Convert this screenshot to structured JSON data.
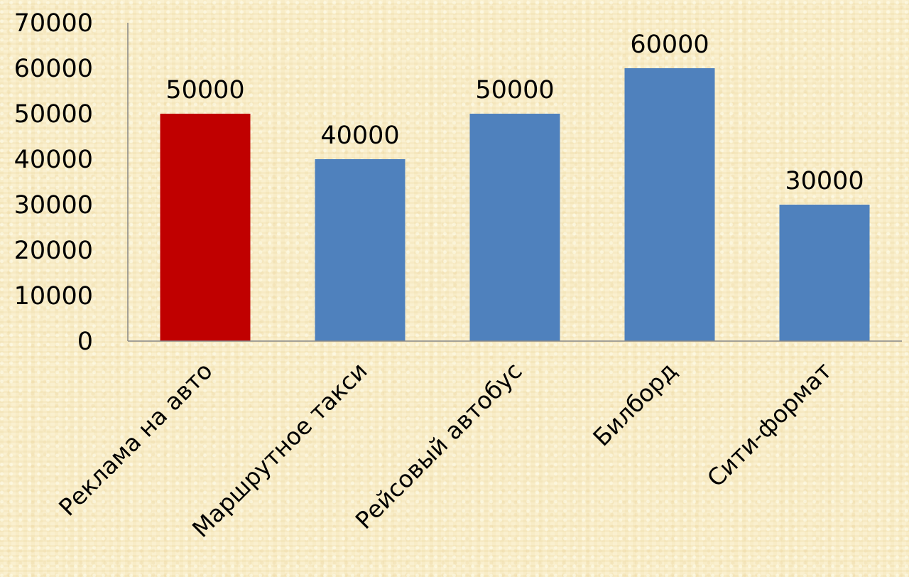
{
  "chart_data": {
    "type": "bar",
    "categories": [
      "Реклама на авто",
      "Маршрутное такси",
      "Рейсовый автобус",
      "Билборд",
      "Сити-формат"
    ],
    "values": [
      50000,
      40000,
      50000,
      60000,
      30000
    ],
    "data_labels": [
      "50000",
      "40000",
      "50000",
      "60000",
      "30000"
    ],
    "y_ticks": [
      "0",
      "10000",
      "20000",
      "30000",
      "40000",
      "50000",
      "60000",
      "70000"
    ],
    "ylim": [
      0,
      70000
    ],
    "title": "",
    "xlabel": "",
    "ylabel": "",
    "grid": false,
    "legend": "none",
    "colors": {
      "highlight": "#c00000",
      "default": "#4f81bd",
      "bar_colors": [
        "#c00000",
        "#4f81bd",
        "#4f81bd",
        "#4f81bd",
        "#4f81bd"
      ],
      "axis": "#888888"
    }
  }
}
